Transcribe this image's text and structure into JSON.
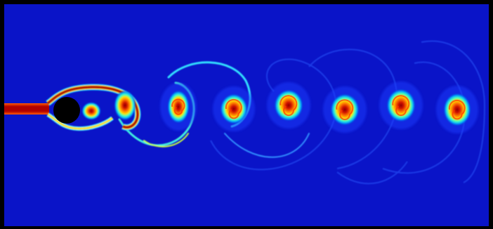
{
  "figure": {
    "kind": "cylinder wake vortex street visualization",
    "colormap": "jet",
    "colors": {
      "frame": "#000000",
      "field_background": "#0a14c8",
      "cylinder": "#000000",
      "dye_core": "#b00000",
      "dye_mid": "#ff8c00",
      "dye_edge": "#00c8ff"
    },
    "vortex_count": 7
  }
}
